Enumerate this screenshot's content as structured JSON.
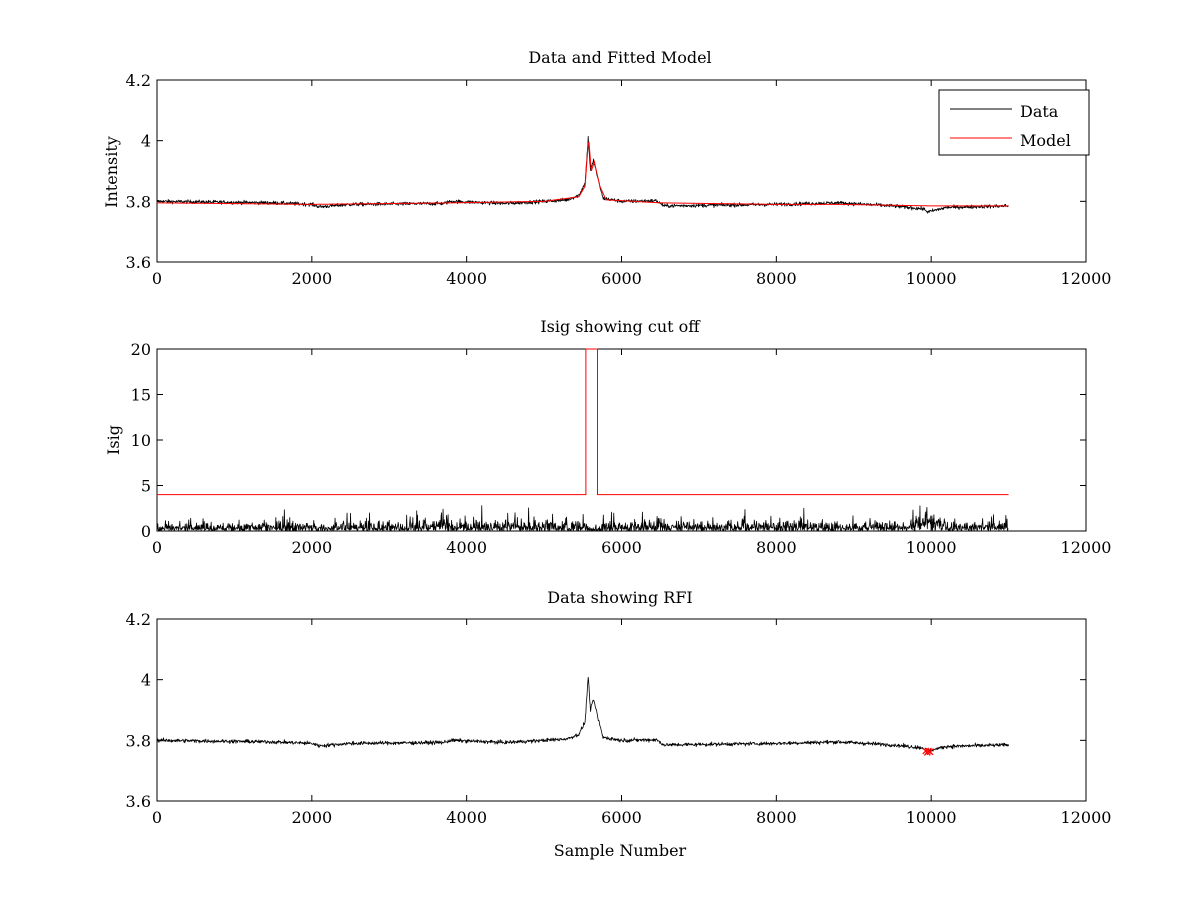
{
  "chart_data": [
    {
      "type": "line",
      "title": "Data and Fitted Model",
      "xlabel": "",
      "ylabel": "Intensity",
      "xlim": [
        0,
        12000
      ],
      "ylim": [
        3.6,
        4.2
      ],
      "xticks": [
        0,
        2000,
        4000,
        6000,
        8000,
        10000,
        12000
      ],
      "xtick_labels": [
        "0",
        "2000",
        "4000",
        "6000",
        "8000",
        "10000",
        "12000"
      ],
      "yticks": [
        3.6,
        3.8,
        4.0,
        4.2
      ],
      "ytick_labels": [
        "3.6",
        "3.8",
        "4",
        "4.2"
      ],
      "legend": {
        "position": "top-right",
        "entries": [
          "Data",
          "Model"
        ]
      },
      "series": [
        {
          "name": "Data",
          "color": "#000000",
          "kind": "noisy",
          "x_range": [
            0,
            11000
          ],
          "noise": 0.006,
          "profile": [
            [
              0,
              3.8
            ],
            [
              1500,
              3.795
            ],
            [
              2000,
              3.79
            ],
            [
              2100,
              3.782
            ],
            [
              2500,
              3.79
            ],
            [
              3700,
              3.793
            ],
            [
              3800,
              3.8
            ],
            [
              4500,
              3.793
            ],
            [
              5000,
              3.8
            ],
            [
              5300,
              3.805
            ],
            [
              5450,
              3.82
            ],
            [
              5530,
              3.86
            ],
            [
              5570,
              4.01
            ],
            [
              5600,
              3.9
            ],
            [
              5640,
              3.935
            ],
            [
              5700,
              3.87
            ],
            [
              5760,
              3.81
            ],
            [
              6000,
              3.8
            ],
            [
              6450,
              3.802
            ],
            [
              6550,
              3.785
            ],
            [
              8000,
              3.79
            ],
            [
              8800,
              3.795
            ],
            [
              9500,
              3.785
            ],
            [
              9900,
              3.775
            ],
            [
              9960,
              3.765
            ],
            [
              10200,
              3.78
            ],
            [
              11000,
              3.785
            ]
          ]
        },
        {
          "name": "Model",
          "color": "#ff0000",
          "kind": "smooth",
          "x_range": [
            0,
            11000
          ],
          "profile": [
            [
              0,
              3.795
            ],
            [
              2000,
              3.79
            ],
            [
              3800,
              3.795
            ],
            [
              5000,
              3.8
            ],
            [
              5450,
              3.815
            ],
            [
              5530,
              3.85
            ],
            [
              5575,
              4.01
            ],
            [
              5610,
              3.9
            ],
            [
              5650,
              3.93
            ],
            [
              5720,
              3.85
            ],
            [
              5800,
              3.805
            ],
            [
              6500,
              3.795
            ],
            [
              8000,
              3.79
            ],
            [
              8800,
              3.79
            ],
            [
              10000,
              3.785
            ],
            [
              11000,
              3.785
            ]
          ]
        }
      ]
    },
    {
      "type": "line",
      "title": "Isig showing cut off",
      "xlabel": "",
      "ylabel": "Isig",
      "xlim": [
        0,
        12000
      ],
      "ylim": [
        0,
        20
      ],
      "xticks": [
        0,
        2000,
        4000,
        6000,
        8000,
        10000,
        12000
      ],
      "xtick_labels": [
        "0",
        "2000",
        "4000",
        "6000",
        "8000",
        "10000",
        "12000"
      ],
      "yticks": [
        0,
        5,
        10,
        15,
        20
      ],
      "ytick_labels": [
        "0",
        "5",
        "10",
        "15",
        "20"
      ],
      "series": [
        {
          "name": "Isig",
          "color": "#000000",
          "kind": "abs-noise",
          "x_range": [
            0,
            11000
          ],
          "noise": 0.9,
          "profile": [
            [
              0,
              0.6
            ],
            [
              1600,
              0.7
            ],
            [
              1700,
              1.1
            ],
            [
              1800,
              0.7
            ],
            [
              3600,
              0.8
            ],
            [
              3720,
              1.8
            ],
            [
              3800,
              0.8
            ],
            [
              4600,
              0.8
            ],
            [
              4620,
              1.4
            ],
            [
              4700,
              0.8
            ],
            [
              5550,
              0.8
            ],
            [
              5600,
              0.3
            ],
            [
              5680,
              0.8
            ],
            [
              6400,
              0.8
            ],
            [
              6450,
              1.6
            ],
            [
              6550,
              0.8
            ],
            [
              9700,
              0.8
            ],
            [
              9850,
              1.3
            ],
            [
              9950,
              2.0
            ],
            [
              10050,
              1.3
            ],
            [
              10200,
              0.8
            ],
            [
              11000,
              0.8
            ]
          ]
        },
        {
          "name": "Cut off",
          "color": "#ff0000",
          "kind": "step",
          "points": [
            [
              0,
              4
            ],
            [
              5540,
              4
            ],
            [
              5540,
              20
            ],
            [
              5690,
              20
            ],
            [
              5690,
              4
            ],
            [
              11000,
              4
            ]
          ]
        }
      ]
    },
    {
      "type": "line",
      "title": "Data showing RFI",
      "xlabel": "Sample Number",
      "ylabel": "",
      "xlim": [
        0,
        12000
      ],
      "ylim": [
        3.6,
        4.2
      ],
      "xticks": [
        0,
        2000,
        4000,
        6000,
        8000,
        10000,
        12000
      ],
      "xtick_labels": [
        "0",
        "2000",
        "4000",
        "6000",
        "8000",
        "10000",
        "12000"
      ],
      "yticks": [
        3.6,
        3.8,
        4.0,
        4.2
      ],
      "ytick_labels": [
        "3.6",
        "3.8",
        "4",
        "4.2"
      ],
      "series": [
        {
          "name": "Data",
          "color": "#000000",
          "kind": "noisy",
          "x_range": [
            0,
            11000
          ],
          "noise": 0.006,
          "profile": [
            [
              0,
              3.8
            ],
            [
              1500,
              3.795
            ],
            [
              2000,
              3.79
            ],
            [
              2100,
              3.782
            ],
            [
              2500,
              3.79
            ],
            [
              3700,
              3.793
            ],
            [
              3800,
              3.8
            ],
            [
              4500,
              3.793
            ],
            [
              5000,
              3.8
            ],
            [
              5300,
              3.805
            ],
            [
              5450,
              3.82
            ],
            [
              5530,
              3.86
            ],
            [
              5570,
              4.01
            ],
            [
              5600,
              3.9
            ],
            [
              5640,
              3.935
            ],
            [
              5700,
              3.87
            ],
            [
              5760,
              3.81
            ],
            [
              6000,
              3.8
            ],
            [
              6450,
              3.802
            ],
            [
              6550,
              3.785
            ],
            [
              8000,
              3.79
            ],
            [
              8800,
              3.795
            ],
            [
              9500,
              3.785
            ],
            [
              9900,
              3.775
            ],
            [
              9960,
              3.765
            ],
            [
              10200,
              3.78
            ],
            [
              11000,
              3.785
            ]
          ]
        },
        {
          "name": "RFI",
          "color": "#ff0000",
          "kind": "markers",
          "points": [
            [
              9930,
              3.765
            ],
            [
              9950,
              3.76
            ],
            [
              9965,
              3.765
            ],
            [
              9985,
              3.762
            ]
          ]
        }
      ]
    }
  ]
}
